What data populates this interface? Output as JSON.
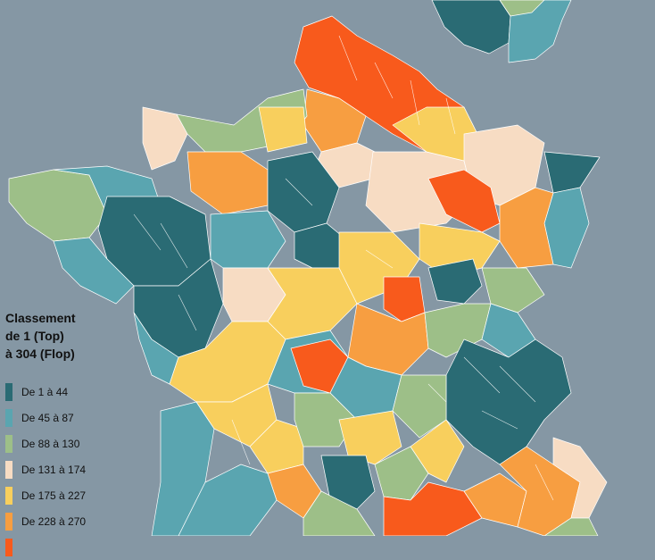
{
  "map": {
    "background_color": "#8597a4",
    "legend": {
      "title_lines": [
        "Classement",
        "de 1 (Top)",
        "à 304 (Flop)"
      ],
      "classes": [
        {
          "label": "De 1 à 44",
          "color": "#2a6b74"
        },
        {
          "label": "De 45 à 87",
          "color": "#5aa5b0"
        },
        {
          "label": "De 88 à 130",
          "color": "#9dbf88"
        },
        {
          "label": "De 131 à 174",
          "color": "#f7dcc3"
        },
        {
          "label": "De 175 à 227",
          "color": "#f8cf5d"
        },
        {
          "label": "De 228 à 270",
          "color": "#f79e41"
        }
      ],
      "extra_class_color": "#f85a1c"
    }
  }
}
